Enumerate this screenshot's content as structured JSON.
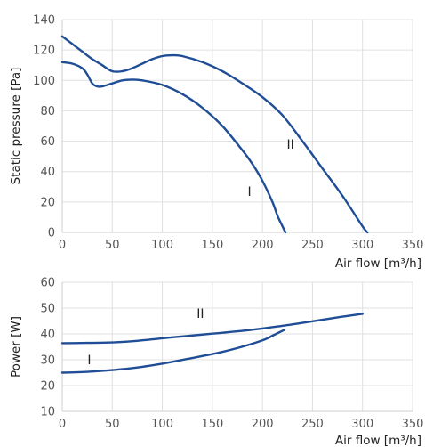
{
  "chart_data": [
    {
      "type": "line",
      "xlabel": "Air flow [m³/h]",
      "ylabel": "Static pressure [Pa]",
      "xlim": [
        0,
        350
      ],
      "ylim": [
        0,
        140
      ],
      "xticks": [
        0,
        50,
        100,
        150,
        200,
        250,
        300,
        350
      ],
      "yticks": [
        0,
        20,
        40,
        60,
        80,
        100,
        120,
        140
      ],
      "grid": true,
      "line_color": "#1f4e96",
      "series": [
        {
          "name": "I",
          "x": [
            0,
            10,
            20,
            25,
            30,
            35,
            40,
            50,
            60,
            70,
            80,
            100,
            120,
            140,
            160,
            180,
            190,
            200,
            210,
            215,
            220,
            223
          ],
          "y": [
            112,
            111,
            108,
            104,
            98,
            96,
            96,
            98,
            100,
            100.5,
            100,
            97,
            91,
            82,
            70,
            54,
            45,
            34,
            20,
            11,
            4,
            0
          ]
        },
        {
          "name": "II",
          "x": [
            0,
            10,
            20,
            30,
            40,
            50,
            60,
            70,
            80,
            90,
            100,
            110,
            120,
            140,
            160,
            180,
            200,
            220,
            240,
            260,
            280,
            300,
            305
          ],
          "y": [
            129,
            124,
            119,
            114,
            110,
            106,
            106,
            108,
            111,
            114,
            116,
            116.5,
            116,
            112,
            106,
            98,
            89,
            77,
            60,
            42,
            24,
            4,
            0
          ]
        }
      ],
      "annotations": [
        {
          "text": "II",
          "x": 228,
          "y": 58
        },
        {
          "text": "I",
          "x": 187,
          "y": 27
        }
      ]
    },
    {
      "type": "line",
      "xlabel": "Air flow [m³/h]",
      "ylabel": "Power [W]",
      "xlim": [
        0,
        350
      ],
      "ylim": [
        10,
        60
      ],
      "xticks": [
        0,
        50,
        100,
        150,
        200,
        250,
        300,
        350
      ],
      "yticks": [
        10,
        20,
        30,
        40,
        50,
        60
      ],
      "grid": true,
      "line_color": "#1f4e96",
      "series": [
        {
          "name": "I",
          "x": [
            0,
            25,
            50,
            75,
            100,
            125,
            150,
            175,
            200,
            210,
            222
          ],
          "y": [
            25,
            25.3,
            26,
            27,
            28.5,
            30.3,
            32.2,
            34.5,
            37.5,
            39.3,
            41.6
          ]
        },
        {
          "name": "II",
          "x": [
            0,
            25,
            50,
            75,
            100,
            125,
            150,
            175,
            200,
            225,
            250,
            275,
            300
          ],
          "y": [
            36.4,
            36.5,
            36.7,
            37.3,
            38.3,
            39.2,
            40.1,
            41.0,
            42.1,
            43.4,
            44.9,
            46.4,
            47.8
          ]
        }
      ],
      "annotations": [
        {
          "text": "II",
          "x": 138,
          "y": 48
        },
        {
          "text": "I",
          "x": 27,
          "y": 30
        }
      ]
    }
  ]
}
